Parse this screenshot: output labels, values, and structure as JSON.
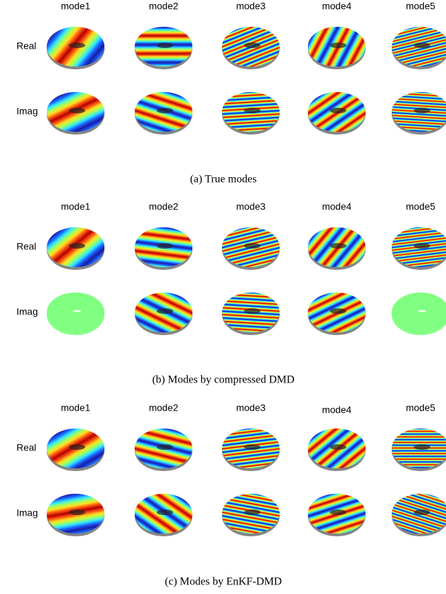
{
  "panels": [
    {
      "columns": [
        "mode1",
        "mode2",
        "mode3",
        "mode4",
        "mode5"
      ],
      "rows": [
        "Real",
        "Imag"
      ],
      "caption": "(a) True modes"
    },
    {
      "columns": [
        "mode1",
        "mode2",
        "mode3",
        "mode4",
        "mode5"
      ],
      "rows": [
        "Real",
        "Imag"
      ],
      "caption": "(b) Modes by compressed DMD"
    },
    {
      "columns": [
        "mode1",
        "mode2",
        "mode3",
        "mode4",
        "mode5"
      ],
      "rows": [
        "Real",
        "Imag"
      ],
      "caption": "(c) Modes by EnKF-DMD"
    }
  ]
}
